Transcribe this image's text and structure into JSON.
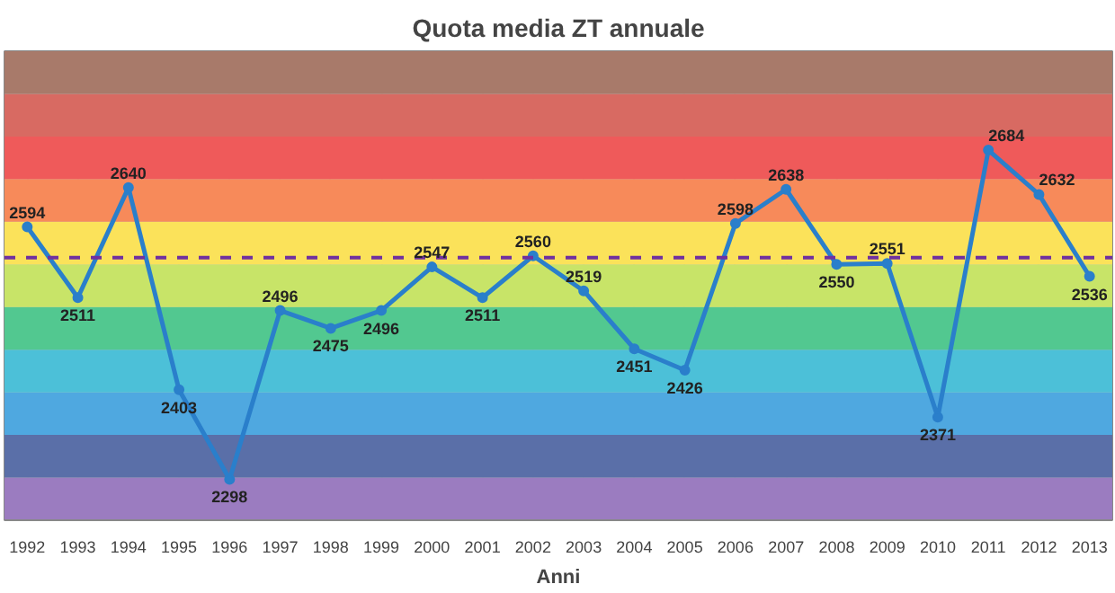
{
  "chart_data": {
    "type": "line",
    "title": "Quota media ZT annuale",
    "xlabel": "Anni",
    "categories": [
      "1992",
      "1993",
      "1994",
      "1995",
      "1996",
      "1997",
      "1998",
      "1999",
      "2000",
      "2001",
      "2002",
      "2003",
      "2004",
      "2005",
      "2006",
      "2007",
      "2008",
      "2009",
      "2010",
      "2011",
      "2012",
      "2013"
    ],
    "series": [
      {
        "color": "#2a7fcb",
        "values": [
          2594,
          2511,
          2640,
          2403,
          2298,
          2496,
          2475,
          2496,
          2547,
          2511,
          2560,
          2519,
          2451,
          2426,
          2598,
          2638,
          2550,
          2551,
          2371,
          2684,
          2632,
          2536
        ]
      }
    ],
    "data_labels": true,
    "marker": "circle",
    "line_style": "solid",
    "ylim": [
      2250,
      2800
    ],
    "yticks": [
      {
        "value": 2300,
        "label": null
      },
      {
        "value": 2350,
        "label": null
      },
      {
        "value": 2400,
        "label": null
      },
      {
        "value": 2450,
        "label": null
      },
      {
        "value": 2500,
        "label": null
      },
      {
        "value": 2550,
        "label": null
      },
      {
        "value": 2600,
        "label": null
      },
      {
        "value": 2650,
        "label": null
      },
      {
        "value": 2700,
        "label": null
      },
      {
        "value": 2750,
        "label": null
      }
    ],
    "tick_labels": "x",
    "grid": true,
    "ref_lines": [
      {
        "axis": "y",
        "value": 2558,
        "color": "#7030a0",
        "line_style": "dashed"
      }
    ],
    "bands": [
      {
        "axis": "y",
        "from": 2250,
        "to": 2300,
        "color": "#9b7cc0"
      },
      {
        "axis": "y",
        "from": 2300,
        "to": 2350,
        "color": "#5a6fa8"
      },
      {
        "axis": "y",
        "from": 2350,
        "to": 2400,
        "color": "#4fa8e0"
      },
      {
        "axis": "y",
        "from": 2400,
        "to": 2450,
        "color": "#4cc0d8"
      },
      {
        "axis": "y",
        "from": 2450,
        "to": 2500,
        "color": "#52c890"
      },
      {
        "axis": "y",
        "from": 2500,
        "to": 2550,
        "color": "#c8e468"
      },
      {
        "axis": "y",
        "from": 2550,
        "to": 2600,
        "color": "#fbe25a"
      },
      {
        "axis": "y",
        "from": 2600,
        "to": 2650,
        "color": "#f78a5a"
      },
      {
        "axis": "y",
        "from": 2650,
        "to": 2700,
        "color": "#ef5a5a"
      },
      {
        "axis": "y",
        "from": 2700,
        "to": 2750,
        "color": "#d86a62"
      },
      {
        "axis": "y",
        "from": 2750,
        "to": 2800,
        "color": "#a87a6a"
      }
    ]
  }
}
